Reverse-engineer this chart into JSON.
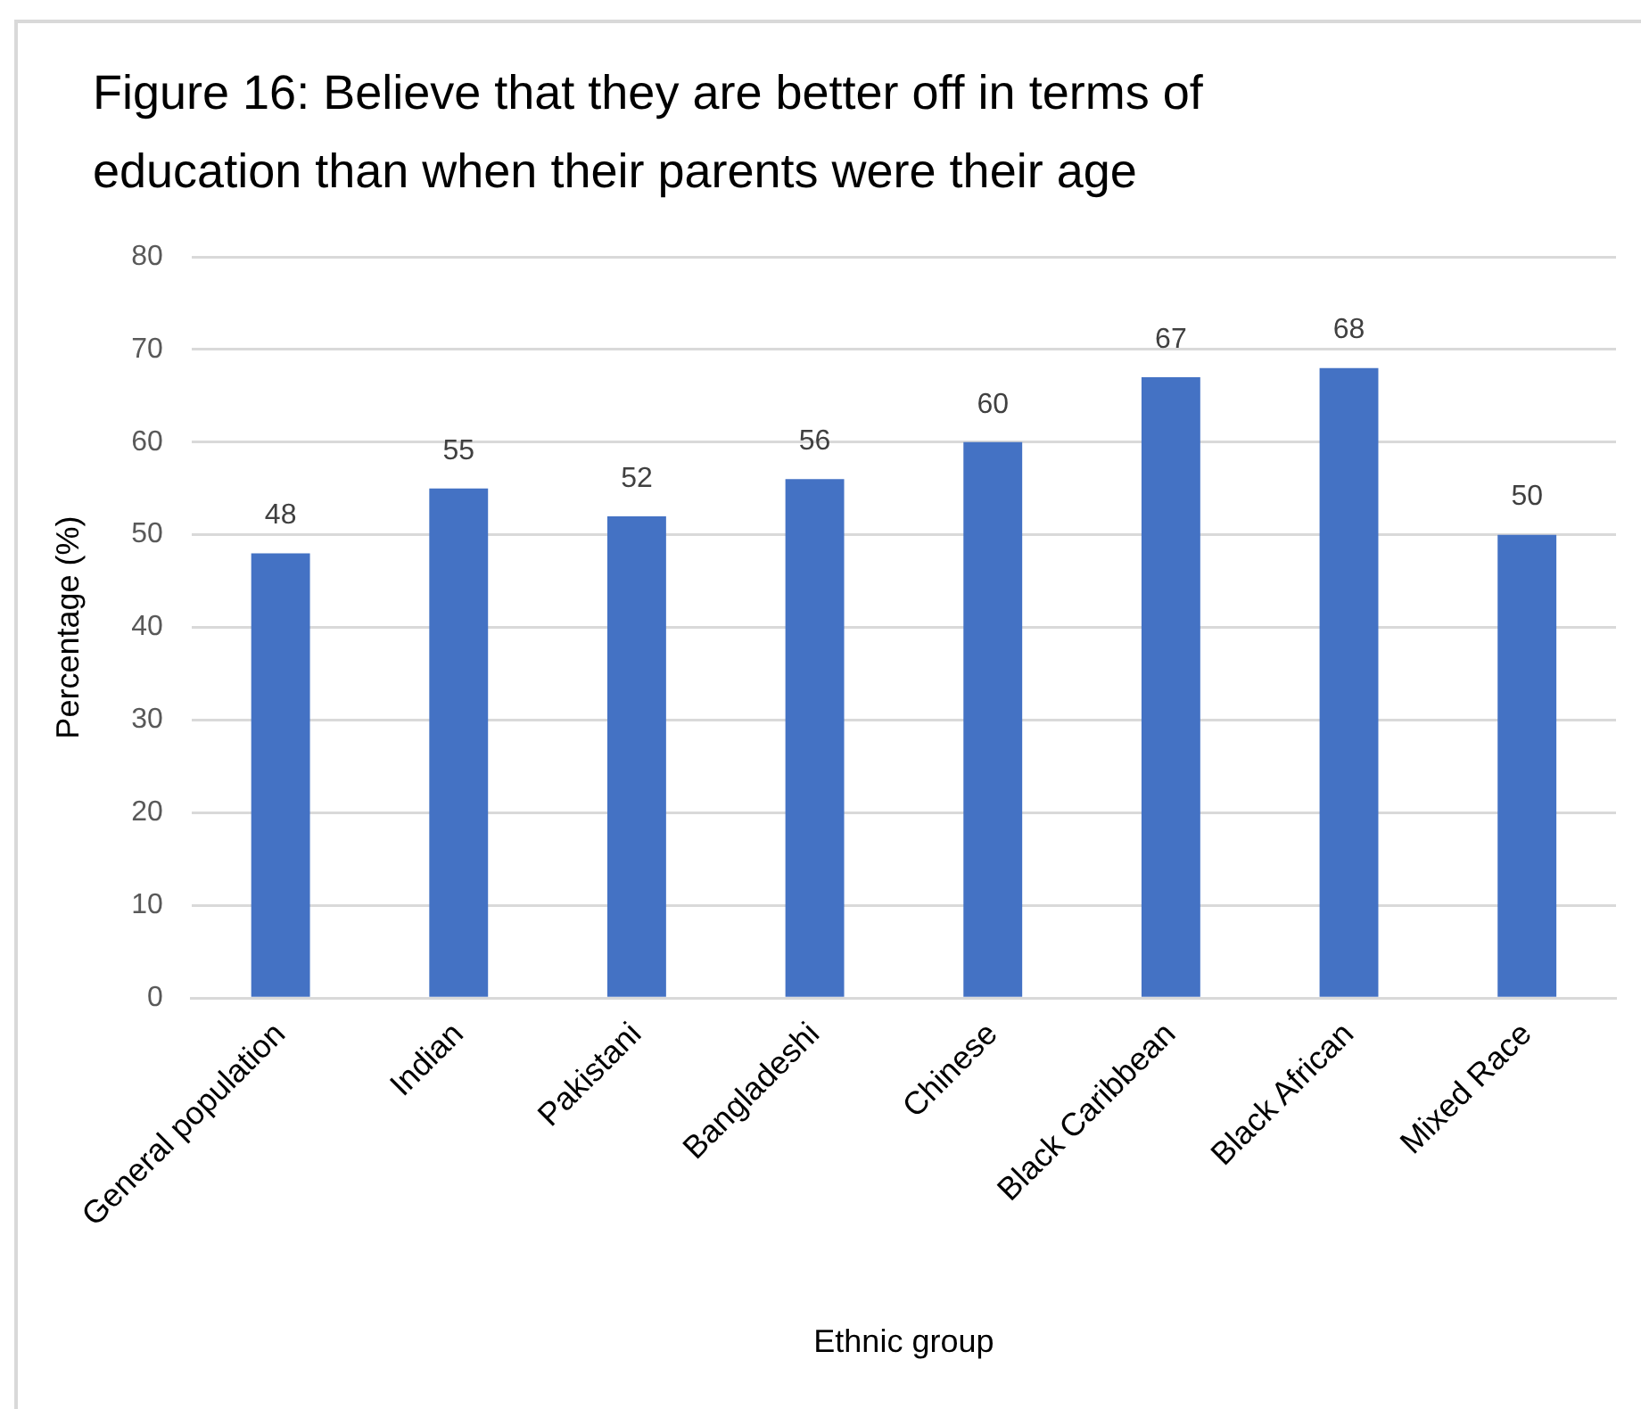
{
  "chart_data": {
    "type": "bar",
    "title": "Figure 16: Believe that they are better off in terms of education than when their parents were their age",
    "xlabel": "Ethnic group",
    "ylabel": "Percentage (%)",
    "categories": [
      "General population",
      "Indian",
      "Pakistani",
      "Bangladeshi",
      "Chinese",
      "Black Caribbean",
      "Black African",
      "Mixed Race"
    ],
    "values": [
      48,
      55,
      52,
      56,
      60,
      67,
      68,
      50
    ],
    "color": "#4472c4",
    "ylim": [
      0,
      80
    ],
    "yticks": [
      0,
      10,
      20,
      30,
      40,
      50,
      60,
      70,
      80
    ],
    "grid": "y",
    "data_labels": true
  }
}
